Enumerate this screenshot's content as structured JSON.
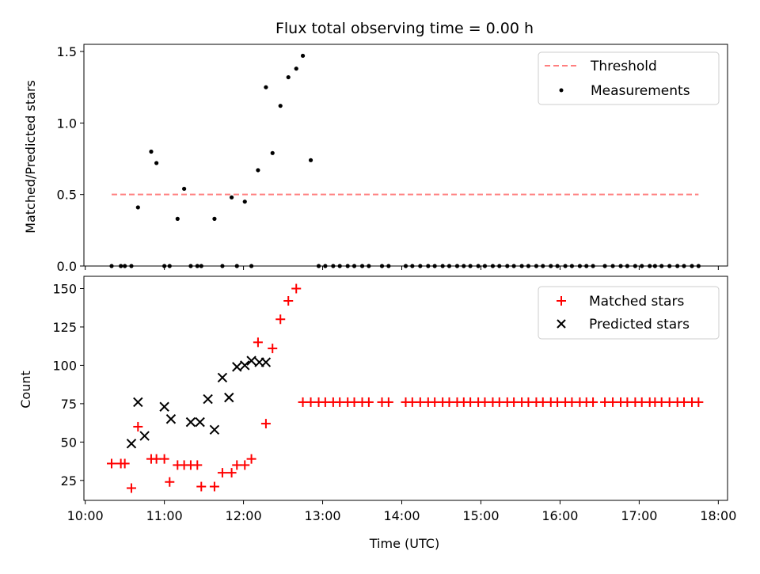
{
  "chart_data": [
    {
      "type": "scatter",
      "title": "Flux total observing time = 0.00 h",
      "xlabel": "",
      "ylabel": "Matched/Predicted stars",
      "xlim": [
        "09:59",
        "18:07"
      ],
      "ylim": [
        0,
        1.55
      ],
      "yticks": [
        "0.0",
        "0.5",
        "1.0",
        "1.5"
      ],
      "grid": false,
      "legend_position": "top-right",
      "threshold": {
        "name": "Threshold",
        "value": 0.5,
        "x_start": "10:20",
        "x_end": "17:45",
        "color": "#ff7f7f"
      },
      "series": [
        {
          "name": "Measurements",
          "color": "#000000",
          "marker": "dot",
          "points": [
            [
              "10:20",
              0
            ],
            [
              "10:27",
              0
            ],
            [
              "10:30",
              0
            ],
            [
              "10:35",
              0
            ],
            [
              "10:40",
              0.41
            ],
            [
              "10:50",
              0.8
            ],
            [
              "10:54",
              0.72
            ],
            [
              "11:00",
              0
            ],
            [
              "11:04",
              0
            ],
            [
              "11:10",
              0.33
            ],
            [
              "11:15",
              0.54
            ],
            [
              "11:20",
              0
            ],
            [
              "11:25",
              0
            ],
            [
              "11:28",
              0
            ],
            [
              "11:38",
              0.33
            ],
            [
              "11:44",
              0
            ],
            [
              "11:51",
              0.48
            ],
            [
              "11:55",
              0
            ],
            [
              "12:01",
              0.45
            ],
            [
              "12:06",
              0
            ],
            [
              "12:11",
              0.67
            ],
            [
              "12:17",
              1.25
            ],
            [
              "12:22",
              0.79
            ],
            [
              "12:28",
              1.12
            ],
            [
              "12:34",
              1.32
            ],
            [
              "12:40",
              1.38
            ],
            [
              "12:45",
              1.47
            ],
            [
              "12:51",
              0.74
            ],
            [
              "12:57",
              0
            ],
            [
              "13:02",
              0
            ],
            [
              "13:08",
              0
            ],
            [
              "13:13",
              0
            ],
            [
              "13:19",
              0
            ],
            [
              "13:24",
              0
            ],
            [
              "13:30",
              0
            ],
            [
              "13:35",
              0
            ],
            [
              "13:45",
              0
            ],
            [
              "13:50",
              0
            ],
            [
              "14:03",
              0
            ],
            [
              "14:08",
              0
            ],
            [
              "14:14",
              0
            ],
            [
              "14:20",
              0
            ],
            [
              "14:25",
              0
            ],
            [
              "14:31",
              0
            ],
            [
              "14:36",
              0
            ],
            [
              "14:42",
              0
            ],
            [
              "14:47",
              0
            ],
            [
              "14:52",
              0
            ],
            [
              "14:58",
              0
            ],
            [
              "15:03",
              0
            ],
            [
              "15:09",
              0
            ],
            [
              "15:14",
              0
            ],
            [
              "15:20",
              0
            ],
            [
              "15:25",
              0
            ],
            [
              "15:31",
              0
            ],
            [
              "15:36",
              0
            ],
            [
              "15:42",
              0
            ],
            [
              "15:47",
              0
            ],
            [
              "15:53",
              0
            ],
            [
              "15:58",
              0
            ],
            [
              "16:04",
              0
            ],
            [
              "16:09",
              0
            ],
            [
              "16:15",
              0
            ],
            [
              "16:20",
              0
            ],
            [
              "16:25",
              0
            ],
            [
              "16:34",
              0
            ],
            [
              "16:40",
              0
            ],
            [
              "16:46",
              0
            ],
            [
              "16:51",
              0
            ],
            [
              "16:57",
              0
            ],
            [
              "17:02",
              0
            ],
            [
              "17:08",
              0
            ],
            [
              "17:12",
              0
            ],
            [
              "17:17",
              0
            ],
            [
              "17:23",
              0
            ],
            [
              "17:29",
              0
            ],
            [
              "17:34",
              0
            ],
            [
              "17:40",
              0
            ],
            [
              "17:45",
              0
            ]
          ]
        }
      ]
    },
    {
      "type": "scatter",
      "title": "",
      "xlabel": "Time (UTC)",
      "ylabel": "Count",
      "xlim": [
        "09:59",
        "18:07"
      ],
      "ylim": [
        12,
        158
      ],
      "xticks": [
        "10:00",
        "11:00",
        "12:00",
        "13:00",
        "14:00",
        "15:00",
        "16:00",
        "17:00",
        "18:00"
      ],
      "yticks": [
        "25",
        "50",
        "75",
        "100",
        "125",
        "150"
      ],
      "grid": false,
      "legend_position": "top-right",
      "series": [
        {
          "name": "Matched stars",
          "color": "#ff0000",
          "marker": "plus",
          "points": [
            [
              "10:20",
              36
            ],
            [
              "10:27",
              36
            ],
            [
              "10:30",
              36
            ],
            [
              "10:35",
              20
            ],
            [
              "10:40",
              60
            ],
            [
              "10:50",
              39
            ],
            [
              "10:54",
              39
            ],
            [
              "11:00",
              39
            ],
            [
              "11:04",
              24
            ],
            [
              "11:10",
              35
            ],
            [
              "11:15",
              35
            ],
            [
              "11:20",
              35
            ],
            [
              "11:25",
              35
            ],
            [
              "11:28",
              21
            ],
            [
              "11:38",
              21
            ],
            [
              "11:44",
              30
            ],
            [
              "11:51",
              30
            ],
            [
              "11:55",
              35
            ],
            [
              "12:01",
              35
            ],
            [
              "12:06",
              39
            ],
            [
              "12:11",
              115
            ],
            [
              "12:17",
              62
            ],
            [
              "12:22",
              111
            ],
            [
              "12:28",
              130
            ],
            [
              "12:34",
              142
            ],
            [
              "12:40",
              150
            ],
            [
              "12:45",
              76
            ],
            [
              "12:51",
              76
            ],
            [
              "12:57",
              76
            ],
            [
              "13:02",
              76
            ],
            [
              "13:08",
              76
            ],
            [
              "13:13",
              76
            ],
            [
              "13:19",
              76
            ],
            [
              "13:24",
              76
            ],
            [
              "13:30",
              76
            ],
            [
              "13:35",
              76
            ],
            [
              "13:45",
              76
            ],
            [
              "13:50",
              76
            ],
            [
              "14:03",
              76
            ],
            [
              "14:08",
              76
            ],
            [
              "14:14",
              76
            ],
            [
              "14:20",
              76
            ],
            [
              "14:25",
              76
            ],
            [
              "14:31",
              76
            ],
            [
              "14:36",
              76
            ],
            [
              "14:42",
              76
            ],
            [
              "14:47",
              76
            ],
            [
              "14:52",
              76
            ],
            [
              "14:58",
              76
            ],
            [
              "15:03",
              76
            ],
            [
              "15:09",
              76
            ],
            [
              "15:14",
              76
            ],
            [
              "15:20",
              76
            ],
            [
              "15:25",
              76
            ],
            [
              "15:31",
              76
            ],
            [
              "15:36",
              76
            ],
            [
              "15:42",
              76
            ],
            [
              "15:47",
              76
            ],
            [
              "15:53",
              76
            ],
            [
              "15:58",
              76
            ],
            [
              "16:04",
              76
            ],
            [
              "16:09",
              76
            ],
            [
              "16:15",
              76
            ],
            [
              "16:20",
              76
            ],
            [
              "16:25",
              76
            ],
            [
              "16:34",
              76
            ],
            [
              "16:40",
              76
            ],
            [
              "16:46",
              76
            ],
            [
              "16:51",
              76
            ],
            [
              "16:57",
              76
            ],
            [
              "17:02",
              76
            ],
            [
              "17:08",
              76
            ],
            [
              "17:12",
              76
            ],
            [
              "17:17",
              76
            ],
            [
              "17:23",
              76
            ],
            [
              "17:29",
              76
            ],
            [
              "17:34",
              76
            ],
            [
              "17:40",
              76
            ],
            [
              "17:45",
              76
            ]
          ]
        },
        {
          "name": "Predicted stars",
          "color": "#000000",
          "marker": "x",
          "points": [
            [
              "10:35",
              49
            ],
            [
              "10:40",
              76
            ],
            [
              "10:45",
              54
            ],
            [
              "11:00",
              73
            ],
            [
              "11:05",
              65
            ],
            [
              "11:20",
              63
            ],
            [
              "11:27",
              63
            ],
            [
              "11:33",
              78
            ],
            [
              "11:38",
              58
            ],
            [
              "11:44",
              92
            ],
            [
              "11:49",
              79
            ],
            [
              "11:55",
              99
            ],
            [
              "12:01",
              100
            ],
            [
              "12:06",
              103
            ],
            [
              "12:12",
              102
            ],
            [
              "12:17",
              102
            ]
          ]
        }
      ]
    }
  ]
}
